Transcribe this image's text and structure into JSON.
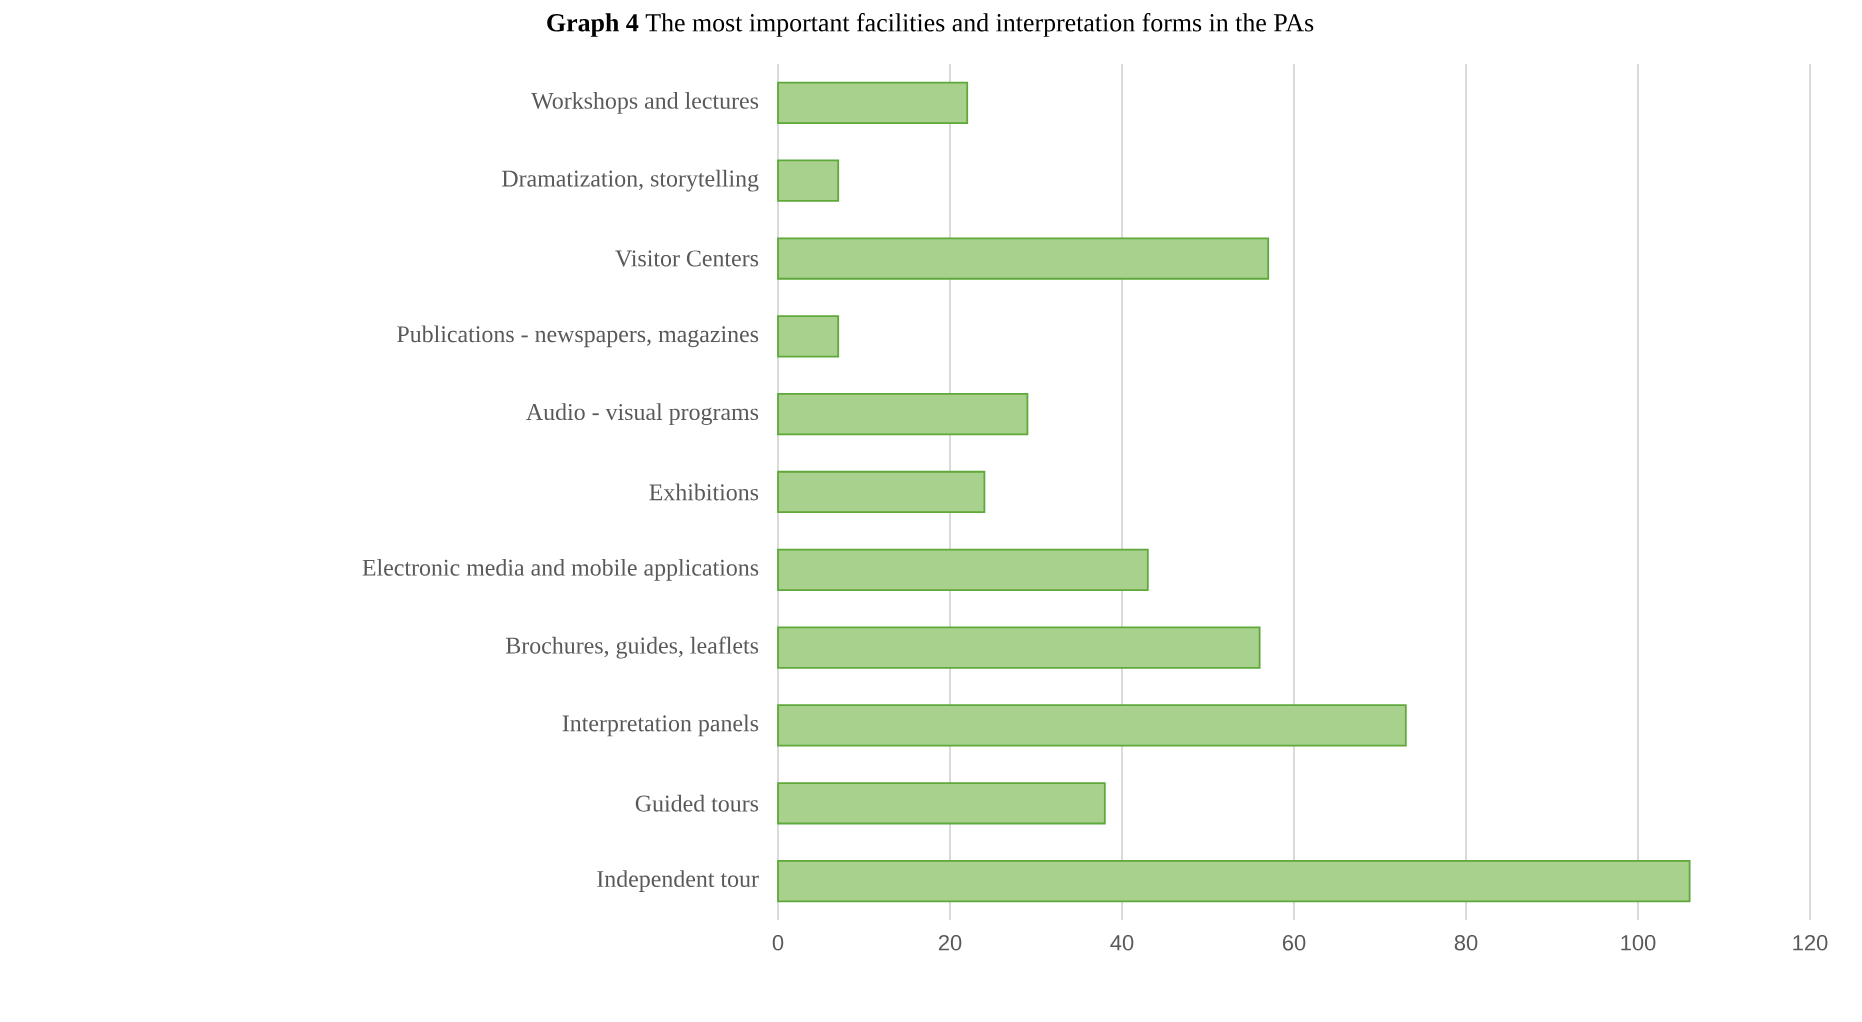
{
  "chart_data": {
    "type": "bar",
    "orientation": "horizontal",
    "title": "**Graph 4** The most important facilities and interpretation forms in the PAs",
    "categories": [
      "Workshops and lectures",
      "Dramatization, storytelling",
      "Visitor Centers",
      "Publications - newspapers, magazines",
      "Audio - visual programs",
      "Exhibitions",
      "Electronic media and mobile applications",
      "Brochures, guides, leaflets",
      "Interpretation panels",
      "Guided tours",
      "Independent tour"
    ],
    "values": [
      22,
      7,
      57,
      7,
      29,
      24,
      43,
      56,
      73,
      38,
      106
    ],
    "color": "#a9d18e",
    "xlim": [
      0,
      120
    ],
    "xticks": [
      0,
      20,
      40,
      60,
      80,
      100,
      120
    ],
    "grid": "x"
  }
}
